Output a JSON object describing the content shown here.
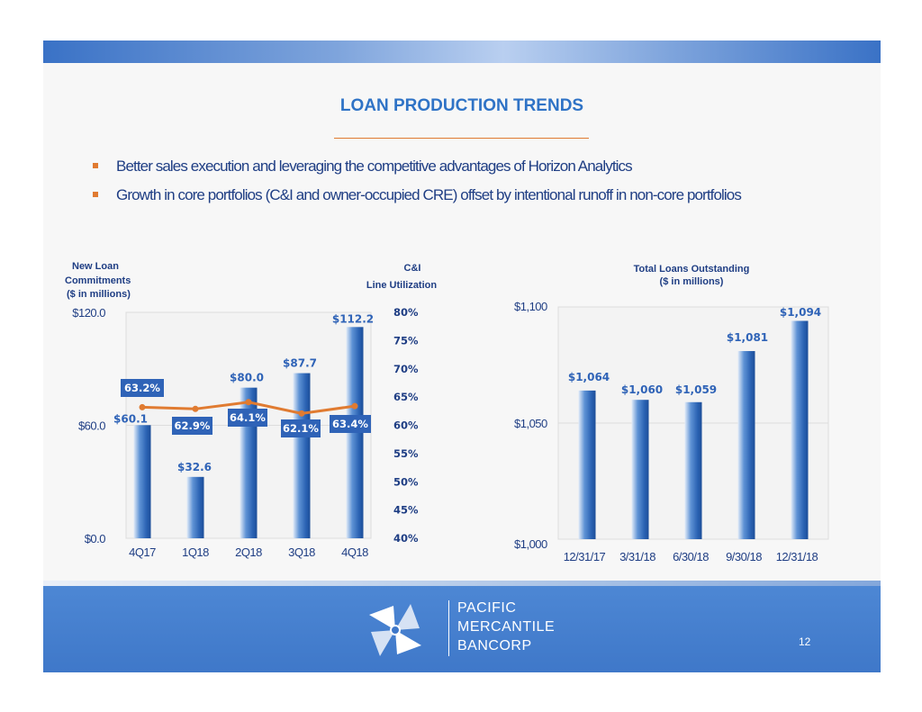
{
  "slide": {
    "title": "LOAN PRODUCTION TRENDS",
    "bullets": [
      "Better sales execution and leveraging the competitive advantages of Horizon Analytics",
      "Growth in core portfolios (C&I and owner-occupied CRE) offset by intentional runoff in non-core portfolios"
    ],
    "page_number": "12",
    "colors": {
      "accent": "#e07b31",
      "brand_blue": "#2f73c6",
      "bar_blue": "#2f6fc0",
      "line_orange": "#e07b31"
    }
  },
  "logo": {
    "icon": "pinwheel-logo-icon",
    "line1": "PACIFIC",
    "line2": "MERCANTILE",
    "line3": "BANCORP"
  },
  "chart_data": [
    {
      "type": "bar",
      "title": "New Loan Commitments ($ in millions)",
      "title_lines": [
        "New Loan",
        "Commitments",
        "($ in millions)"
      ],
      "categories": [
        "4Q17",
        "1Q18",
        "2Q18",
        "3Q18",
        "4Q18"
      ],
      "values": [
        60.1,
        32.6,
        80.0,
        87.7,
        112.2
      ],
      "value_labels": [
        "$60.1",
        "$32.6",
        "$80.0",
        "$87.7",
        "$112.2"
      ],
      "ylim": [
        0,
        120
      ],
      "y_ticks": [
        "$0.0",
        "$60.0",
        "$120.0"
      ],
      "grid": false,
      "secondary": {
        "type": "line",
        "title_lines": [
          "C&I",
          "Line Utilization"
        ],
        "values": [
          63.2,
          62.9,
          64.1,
          62.1,
          63.4
        ],
        "value_labels": [
          "63.2%",
          "62.9%",
          "64.1%",
          "62.1%",
          "63.4%"
        ],
        "ylim": [
          40,
          80
        ],
        "y_ticks": [
          "40%",
          "45%",
          "50%",
          "55%",
          "60%",
          "65%",
          "70%",
          "75%",
          "80%"
        ]
      }
    },
    {
      "type": "bar",
      "title": "Total Loans Outstanding ($ in millions)",
      "title_lines": [
        "Total Loans Outstanding",
        "($ in millions)"
      ],
      "categories": [
        "12/31/17",
        "3/31/18",
        "6/30/18",
        "9/30/18",
        "12/31/18"
      ],
      "values": [
        1064,
        1060,
        1059,
        1081,
        1094
      ],
      "value_labels": [
        "$1,064",
        "$1,060",
        "$1,059",
        "$1,081",
        "$1,094"
      ],
      "ylim": [
        1000,
        1100
      ],
      "y_ticks": [
        "$1,000",
        "$1,050",
        "$1,100"
      ],
      "grid": true
    }
  ]
}
